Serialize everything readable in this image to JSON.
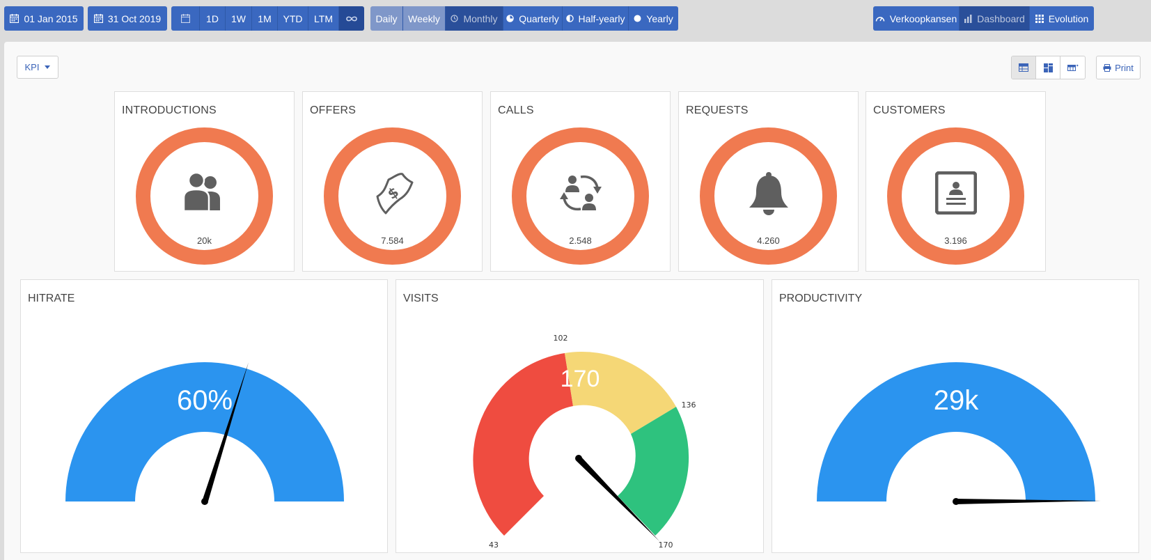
{
  "toolbar": {
    "date_from": "01 Jan 2015",
    "date_to": "31 Oct 2019",
    "ranges": [
      "1D",
      "1W",
      "1M",
      "YTD",
      "LTM"
    ],
    "infinity_icon": "infinity-icon",
    "periods": {
      "daily": "Daily",
      "weekly": "Weekly",
      "monthly": "Monthly",
      "quarterly": "Quarterly",
      "half_yearly": "Half-yearly",
      "yearly": "Yearly"
    },
    "nav": {
      "verkoopkansen": "Verkoopkansen",
      "dashboard": "Dashboard",
      "evolution": "Evolution"
    }
  },
  "controls": {
    "kpi_dropdown": "KPI",
    "print": "Print"
  },
  "kpis": [
    {
      "title": "INTRODUCTIONS",
      "value": "20k",
      "icon": "users-icon"
    },
    {
      "title": "OFFERS",
      "value": "7.584",
      "icon": "money-bill-icon"
    },
    {
      "title": "CALLS",
      "value": "2.548",
      "icon": "exchange-people-icon"
    },
    {
      "title": "REQUESTS",
      "value": "4.260",
      "icon": "bell-icon"
    },
    {
      "title": "CUSTOMERS",
      "value": "3.196",
      "icon": "contact-card-icon"
    }
  ],
  "colors": {
    "ring": "#f07a50",
    "gauge_blue": "#2b94ef",
    "red": "#ef4c40",
    "yellow": "#f5d776",
    "green": "#2ec27e",
    "toolbar_blue": "#3a68c0"
  },
  "gauges": {
    "hitrate": {
      "title": "HITRATE",
      "display": "60%",
      "needle_fraction": 0.6
    },
    "visits": {
      "title": "VISITS",
      "display": "170",
      "value": 170,
      "min": 43,
      "max": 170,
      "bands": [
        {
          "from": 43,
          "to": 102,
          "color": "#ef4c40"
        },
        {
          "from": 102,
          "to": 136,
          "color": "#f5d776"
        },
        {
          "from": 136,
          "to": 170,
          "color": "#2ec27e"
        }
      ],
      "tick_labels": {
        "min": "43",
        "t1": "102",
        "t2": "136",
        "max": "170"
      }
    },
    "productivity": {
      "title": "PRODUCTIVITY",
      "display": "29k",
      "needle_fraction": 1.0
    }
  }
}
